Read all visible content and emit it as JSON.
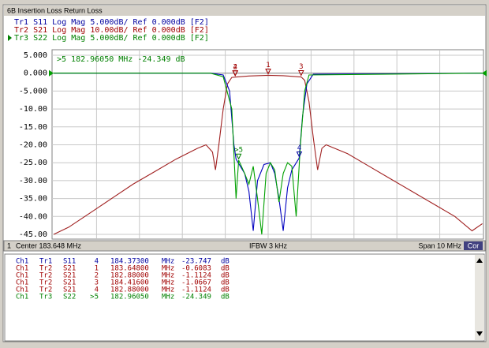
{
  "window_title": "6B Insertion Loss Return Loss",
  "trace_headers": [
    {
      "text": "Tr1 S11 Log Mag 5.000dB/ Ref 0.000dB [F2]",
      "color": "#0000a0"
    },
    {
      "text": "Tr2 S21 Log Mag 10.00dB/ Ref 0.000dB [F2]",
      "color": "#a00000"
    },
    {
      "text": "Tr3 S22 Log Mag 5.000dB/ Ref 0.000dB [F2]",
      "color": "#008000"
    }
  ],
  "chart_data": {
    "type": "line",
    "active_marker_readout": ">5  182.96050 MHz -24.349 dB",
    "xlim": [
      178.648,
      188.648
    ],
    "ylim": [
      -45,
      5
    ],
    "yticks": [
      {
        "value": 5,
        "label": "5.000"
      },
      {
        "value": 0,
        "label": "0.000"
      },
      {
        "value": -5,
        "label": "-5.000"
      },
      {
        "value": -10,
        "label": "-10.00"
      },
      {
        "value": -15,
        "label": "-15.00"
      },
      {
        "value": -20,
        "label": "-20.00"
      },
      {
        "value": -25,
        "label": "-25.00"
      },
      {
        "value": -30,
        "label": "-30.00"
      },
      {
        "value": -35,
        "label": "-35.00"
      },
      {
        "value": -40,
        "label": "-40.00"
      },
      {
        "value": -45,
        "label": "-45.00"
      }
    ],
    "grid": true,
    "series": [
      {
        "name": "S21",
        "color": "#a02020",
        "x": [
          178.65,
          179.0,
          179.5,
          180.0,
          180.5,
          181.0,
          181.5,
          182.0,
          182.2,
          182.35,
          182.42,
          182.5,
          182.6,
          182.7,
          182.8,
          182.88,
          183.2,
          183.65,
          184.0,
          184.42,
          184.5,
          184.6,
          184.7,
          184.8,
          184.9,
          185.0,
          185.5,
          186.0,
          186.5,
          187.0,
          187.5,
          188.0,
          188.4,
          188.64
        ],
        "values": [
          -45,
          -43,
          -39,
          -35,
          -31,
          -27.5,
          -24,
          -21,
          -20,
          -22,
          -27,
          -20,
          -10,
          -3,
          -1.2,
          -1.1,
          -0.8,
          -0.6,
          -0.7,
          -1.07,
          -2,
          -8,
          -18,
          -27,
          -21,
          -20,
          -22.5,
          -26,
          -29.5,
          -33,
          -36.5,
          -40,
          -44,
          -42
        ]
      },
      {
        "name": "S11",
        "color": "#0000c0",
        "x": [
          178.65,
          182.3,
          182.6,
          182.75,
          182.85,
          182.9,
          183.0,
          183.1,
          183.2,
          183.3,
          183.4,
          183.55,
          183.7,
          183.8,
          183.9,
          184.0,
          184.1,
          184.2,
          184.37,
          184.45,
          184.55,
          184.7,
          188.64
        ],
        "values": [
          0,
          0,
          -0.5,
          -5,
          -20,
          -24,
          -26,
          -28,
          -33,
          -44,
          -30,
          -25.5,
          -25,
          -28,
          -35,
          -44,
          -32,
          -27,
          -23.7,
          -12,
          -3,
          -0.3,
          0
        ]
      },
      {
        "name": "S22",
        "color": "#00a000",
        "x": [
          178.65,
          182.3,
          182.6,
          182.8,
          182.9,
          182.96,
          183.1,
          183.2,
          183.3,
          183.4,
          183.5,
          183.6,
          183.7,
          183.8,
          183.9,
          184.0,
          184.1,
          184.2,
          184.3,
          184.4,
          184.5,
          184.6,
          188.64
        ],
        "values": [
          0,
          0,
          -1,
          -10,
          -35,
          -24.3,
          -28,
          -31,
          -26,
          -35,
          -45,
          -28,
          -25,
          -27,
          -36,
          -28,
          -25,
          -26,
          -40,
          -20,
          -5,
          -0.5,
          0
        ]
      }
    ]
  },
  "status_bar": {
    "channel": "1",
    "center": "Center 183.648 MHz",
    "ifbw": "IFBW 3 kHz",
    "span": "Span 10 MHz",
    "correction": "Cor"
  },
  "marker_table": [
    {
      "ch": "Ch1",
      "tr": "Tr1",
      "param": "S11",
      "marker": "4",
      "freq": "184.37300",
      "freq_unit": "MHz",
      "value": "-23.747",
      "value_unit": "dB",
      "color": "#0000a0"
    },
    {
      "ch": "Ch1",
      "tr": "Tr2",
      "param": "S21",
      "marker": "1",
      "freq": "183.64800",
      "freq_unit": "MHz",
      "value": "-0.6083",
      "value_unit": "dB",
      "color": "#a00000"
    },
    {
      "ch": "Ch1",
      "tr": "Tr2",
      "param": "S21",
      "marker": "2",
      "freq": "182.88000",
      "freq_unit": "MHz",
      "value": "-1.1124",
      "value_unit": "dB",
      "color": "#a00000"
    },
    {
      "ch": "Ch1",
      "tr": "Tr2",
      "param": "S21",
      "marker": "3",
      "freq": "184.41600",
      "freq_unit": "MHz",
      "value": "-1.0667",
      "value_unit": "dB",
      "color": "#a00000"
    },
    {
      "ch": "Ch1",
      "tr": "Tr2",
      "param": "S21",
      "marker": "4",
      "freq": "182.88000",
      "freq_unit": "MHz",
      "value": "-1.1124",
      "value_unit": "dB",
      "color": "#a00000"
    },
    {
      "ch": "Ch1",
      "tr": "Tr3",
      "param": "S22",
      "marker": ">5",
      "freq": "182.96050",
      "freq_unit": "MHz",
      "value": "-24.349",
      "value_unit": "dB",
      "color": "#008000"
    }
  ]
}
